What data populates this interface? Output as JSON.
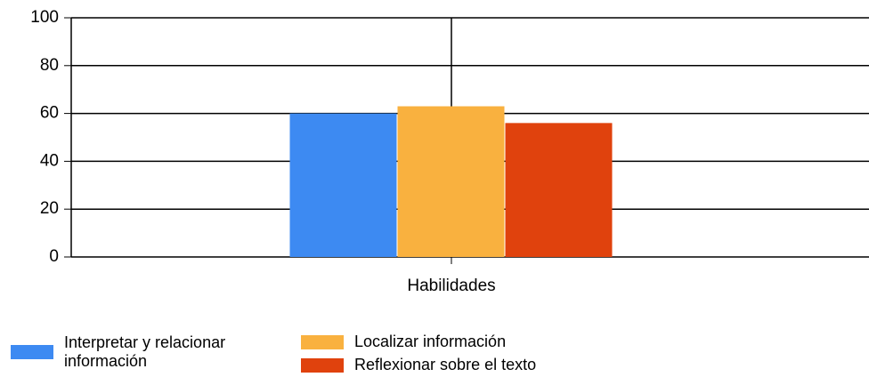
{
  "chart_data": {
    "type": "bar",
    "categories": [
      "Habilidades"
    ],
    "series": [
      {
        "name": "Interpretar y relacionar información",
        "color": "#3d8af2",
        "values": [
          60
        ]
      },
      {
        "name": "Localizar información",
        "color": "#f9b13f",
        "values": [
          63
        ]
      },
      {
        "name": "Reflexionar sobre el texto",
        "color": "#e0420d",
        "values": [
          56
        ]
      }
    ],
    "ylim": [
      0,
      100
    ],
    "yticks": [
      0,
      20,
      40,
      60,
      80,
      100
    ],
    "grid": true
  }
}
